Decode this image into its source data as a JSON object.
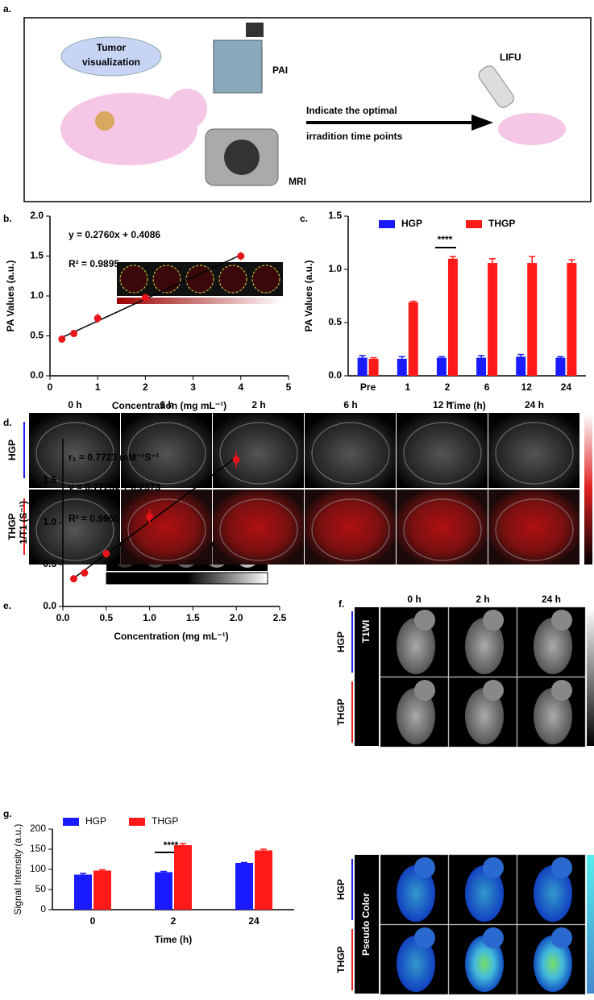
{
  "panel_labels": [
    "a.",
    "b.",
    "c.",
    "d.",
    "e.",
    "f.",
    "g."
  ],
  "panel_a": {
    "cloud": [
      "Tumor",
      "visualization"
    ],
    "pai": "PAI",
    "mri": "MRI",
    "arrow_text": [
      "Indicate the optimal",
      "irradition time points"
    ],
    "lifu": "LIFU"
  },
  "panel_d": {
    "columns": [
      "0 h",
      "1 h",
      "2 h",
      "6 h",
      "12 h",
      "24 h"
    ],
    "rows": [
      "HGP",
      "THGP"
    ]
  },
  "panel_f": {
    "columns": [
      "0 h",
      "2 h",
      "24 h"
    ],
    "rows": [
      "HGP",
      "THGP"
    ],
    "sections": [
      "T1WI",
      "Pseudo Color"
    ]
  },
  "chart_data": [
    {
      "type": "scatter",
      "x": [
        0.25,
        0.5,
        1,
        2,
        4
      ],
      "values": [
        0.46,
        0.53,
        0.72,
        0.98,
        1.5
      ],
      "errors": [
        0.02,
        0.02,
        0.06,
        0.02,
        0.05
      ],
      "color": "#e8141b",
      "trendline": true,
      "xlim": [
        0,
        5
      ],
      "xticks": [
        0,
        1,
        2,
        3,
        4,
        5
      ],
      "ylim": [
        0,
        2
      ],
      "yticks": [
        {
          "value": 0,
          "label": "0.0"
        },
        0.5,
        {
          "value": 1,
          "label": "1.0"
        },
        1.5,
        {
          "value": 2,
          "label": "2.0"
        }
      ],
      "xlabel": "Concentration (mg mL⁻¹)",
      "ylabel": "PA Values (a.u.)",
      "annotations": [
        "y = 0.2760x + 0.4086",
        "R² = 0.9895"
      ]
    },
    {
      "type": "bar",
      "categories": [
        "Pre",
        "1",
        "2",
        "6",
        "12",
        "24"
      ],
      "series": [
        {
          "name": "HGP",
          "color": "#1a1aff",
          "values": [
            0.17,
            0.16,
            0.17,
            0.17,
            0.18,
            0.17
          ],
          "errors": [
            0.02,
            0.02,
            0.01,
            0.02,
            0.02,
            0.01
          ]
        },
        {
          "name": "THGP",
          "color": "#ff1a1a",
          "values": [
            0.16,
            0.69,
            1.1,
            1.06,
            1.06,
            1.06
          ],
          "errors": [
            0.01,
            0.01,
            0.02,
            0.04,
            0.06,
            0.03
          ]
        }
      ],
      "ylim": [
        0,
        1.5
      ],
      "yticks": [
        {
          "value": 0,
          "label": "0.0"
        },
        0.5,
        {
          "value": 1,
          "label": "1.0"
        },
        1.5
      ],
      "xlabel": "Time (h)",
      "ylabel": "PA Values (a.u.)",
      "legend": "top",
      "annotations": [
        "****"
      ]
    },
    {
      "type": "scatter",
      "x": [
        0.125,
        0.25,
        0.5,
        1,
        2
      ],
      "values": [
        0.33,
        0.4,
        0.63,
        1.07,
        1.75
      ],
      "errors": [
        0.04,
        0.02,
        0.05,
        0.09,
        0.1
      ],
      "color": "#e8141b",
      "trendline": true,
      "xlim": [
        0,
        2.5
      ],
      "xticks": [
        {
          "value": 0,
          "label": "0.0"
        },
        0.5,
        {
          "value": 1,
          "label": "1.0"
        },
        1.5,
        {
          "value": 2,
          "label": "2.0"
        },
        2.5
      ],
      "ylim": [
        0,
        2
      ],
      "yticks": [
        {
          "value": 0,
          "label": "0.0"
        },
        0.5,
        {
          "value": 1,
          "label": "1.0"
        },
        1.5
      ],
      "xlabel": "Concentration (mg mL⁻¹)",
      "ylabel": "1/T1 (S⁻¹)",
      "annotations": [
        "r₁ = 0.7723 mM⁻¹S⁻¹",
        "y = 0.7723x + 0.2373",
        "R² = 0.9965"
      ]
    },
    {
      "type": "bar",
      "categories": [
        "0",
        "2",
        "24"
      ],
      "series": [
        {
          "name": "HGP",
          "color": "#1a1aff",
          "values": [
            87,
            93,
            116
          ],
          "errors": [
            3,
            2,
            1
          ]
        },
        {
          "name": "THGP",
          "color": "#ff1a1a",
          "values": [
            97,
            160,
            147
          ],
          "errors": [
            2,
            4,
            3
          ]
        }
      ],
      "ylim": [
        0,
        200
      ],
      "yticks": [
        0,
        50,
        100,
        150,
        200
      ],
      "xlabel": "Time (h)",
      "ylabel": "Signal Intensity (a.u.)",
      "legend": "top",
      "annotations": [
        "****"
      ]
    }
  ]
}
